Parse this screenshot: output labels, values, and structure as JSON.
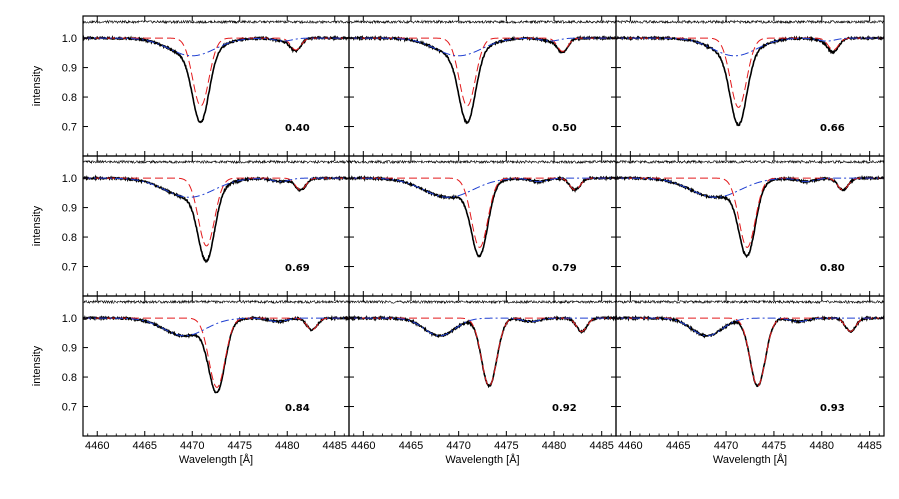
{
  "chart_data": {
    "type": "line",
    "layout": {
      "rows": 3,
      "cols": 3
    },
    "xlim": [
      4458.5,
      4486.5
    ],
    "ylim": [
      0.6,
      1.075
    ],
    "xticks": [
      4460,
      4465,
      4470,
      4475,
      4480,
      4485
    ],
    "yticks": [
      0.7,
      0.8,
      0.9,
      1.0
    ],
    "xlabel": "Wavelength [Å]",
    "ylabel": "intensity",
    "residual_level": 1.055,
    "series_styles": {
      "observed": {
        "color": "#000000",
        "style": "solid",
        "width": 1.6
      },
      "model": {
        "color": "#888888",
        "style": "solid",
        "width": 0.8
      },
      "component_1": {
        "color": "#e31a1c",
        "style": "dashed",
        "width": 1.0
      },
      "component_2": {
        "color": "#1f3fd1",
        "style": "dashdot",
        "width": 1.0
      },
      "residual": {
        "color": "#000000",
        "style": "solid",
        "width": 0.6
      }
    },
    "panels": [
      {
        "phase_label": "0.40",
        "red_main": {
          "center": 4470.9,
          "depth": 0.23,
          "width": 0.85
        },
        "red_sec": {
          "center": 4480.9,
          "depth": 0.04,
          "width": 0.55
        },
        "blue_main": {
          "center": 4470.0,
          "depth": 0.06,
          "width": 2.4
        },
        "blue_sec": {
          "center": 4479.6,
          "depth": 0.01,
          "width": 0.9
        }
      },
      {
        "phase_label": "0.50",
        "red_main": {
          "center": 4470.9,
          "depth": 0.23,
          "width": 0.85
        },
        "red_sec": {
          "center": 4480.9,
          "depth": 0.045,
          "width": 0.55
        },
        "blue_main": {
          "center": 4470.0,
          "depth": 0.06,
          "width": 2.4
        },
        "blue_sec": {
          "center": 4479.6,
          "depth": 0.01,
          "width": 0.9
        }
      },
      {
        "phase_label": "0.66",
        "red_main": {
          "center": 4471.3,
          "depth": 0.235,
          "width": 0.85
        },
        "red_sec": {
          "center": 4481.2,
          "depth": 0.04,
          "width": 0.55
        },
        "blue_main": {
          "center": 4470.9,
          "depth": 0.06,
          "width": 2.3
        },
        "blue_sec": {
          "center": 4480.5,
          "depth": 0.01,
          "width": 0.9
        }
      },
      {
        "phase_label": "0.69",
        "red_main": {
          "center": 4471.5,
          "depth": 0.23,
          "width": 0.85
        },
        "red_sec": {
          "center": 4481.4,
          "depth": 0.04,
          "width": 0.55
        },
        "blue_main": {
          "center": 4469.7,
          "depth": 0.065,
          "width": 2.6
        },
        "blue_sec": {
          "center": 4479.3,
          "depth": 0.012,
          "width": 0.9
        }
      },
      {
        "phase_label": "0.79",
        "red_main": {
          "center": 4472.2,
          "depth": 0.235,
          "width": 0.85
        },
        "red_sec": {
          "center": 4482.2,
          "depth": 0.04,
          "width": 0.55
        },
        "blue_main": {
          "center": 4468.9,
          "depth": 0.065,
          "width": 2.6
        },
        "blue_sec": {
          "center": 4478.4,
          "depth": 0.012,
          "width": 0.9
        }
      },
      {
        "phase_label": "0.80",
        "red_main": {
          "center": 4472.2,
          "depth": 0.235,
          "width": 0.85
        },
        "red_sec": {
          "center": 4482.2,
          "depth": 0.04,
          "width": 0.55
        },
        "blue_main": {
          "center": 4468.9,
          "depth": 0.065,
          "width": 2.6
        },
        "blue_sec": {
          "center": 4478.4,
          "depth": 0.012,
          "width": 0.9
        }
      },
      {
        "phase_label": "0.84",
        "red_main": {
          "center": 4472.6,
          "depth": 0.235,
          "width": 0.85
        },
        "red_sec": {
          "center": 4482.6,
          "depth": 0.04,
          "width": 0.55
        },
        "blue_main": {
          "center": 4469.2,
          "depth": 0.06,
          "width": 2.2
        },
        "blue_sec": {
          "center": 4479.0,
          "depth": 0.012,
          "width": 0.9
        }
      },
      {
        "phase_label": "0.92",
        "red_main": {
          "center": 4473.2,
          "depth": 0.23,
          "width": 0.8
        },
        "red_sec": {
          "center": 4482.9,
          "depth": 0.045,
          "width": 0.55
        },
        "blue_main": {
          "center": 4468.0,
          "depth": 0.06,
          "width": 1.6
        },
        "blue_sec": {
          "center": 4477.6,
          "depth": 0.012,
          "width": 0.9
        }
      },
      {
        "phase_label": "0.93",
        "red_main": {
          "center": 4473.3,
          "depth": 0.23,
          "width": 0.8
        },
        "red_sec": {
          "center": 4483.0,
          "depth": 0.045,
          "width": 0.55
        },
        "blue_main": {
          "center": 4468.0,
          "depth": 0.06,
          "width": 1.6
        },
        "blue_sec": {
          "center": 4477.6,
          "depth": 0.012,
          "width": 0.9
        }
      }
    ]
  }
}
